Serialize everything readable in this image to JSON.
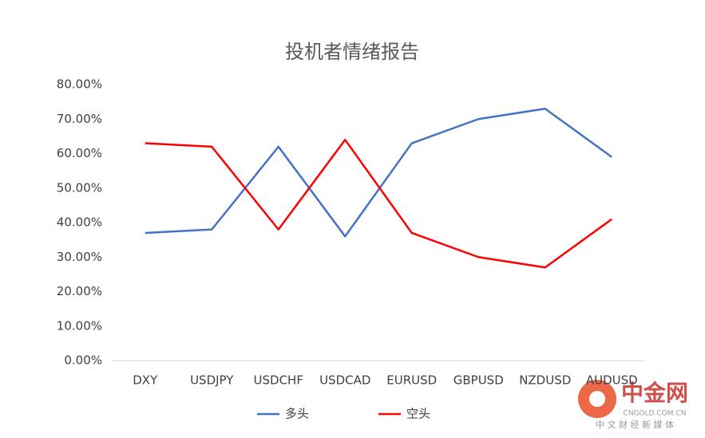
{
  "chart_data": {
    "type": "line",
    "title": "投机者情绪报告",
    "categories": [
      "DXY",
      "USDJPY",
      "USDCHF",
      "USDCAD",
      "EURUSD",
      "GBPUSD",
      "NZDUSD",
      "AUDUSD"
    ],
    "series": [
      {
        "name": "多头",
        "color": "#4472c4",
        "values": [
          37,
          38,
          62,
          36,
          63,
          70,
          73,
          59
        ]
      },
      {
        "name": "空头",
        "color": "#ff0000",
        "values": [
          63,
          62,
          38,
          64,
          37,
          30,
          27,
          41
        ]
      }
    ],
    "ylim": [
      0,
      80
    ],
    "yticks": [
      {
        "value": 0,
        "label": "0.00%"
      },
      {
        "value": 10,
        "label": "10.00%"
      },
      {
        "value": 20,
        "label": "20.00%"
      },
      {
        "value": 30,
        "label": "30.00%"
      },
      {
        "value": 40,
        "label": "40.00%"
      },
      {
        "value": 50,
        "label": "50.00%"
      },
      {
        "value": 60,
        "label": "60.00%"
      },
      {
        "value": 70,
        "label": "70.00%"
      },
      {
        "value": 80,
        "label": "80.00%"
      }
    ],
    "grid": false,
    "legend": "bottom",
    "watermark": {
      "name": "中金网",
      "site": "CNGOLD.COM.CN",
      "tagline": "中 文 财 经 新 媒 体"
    }
  }
}
